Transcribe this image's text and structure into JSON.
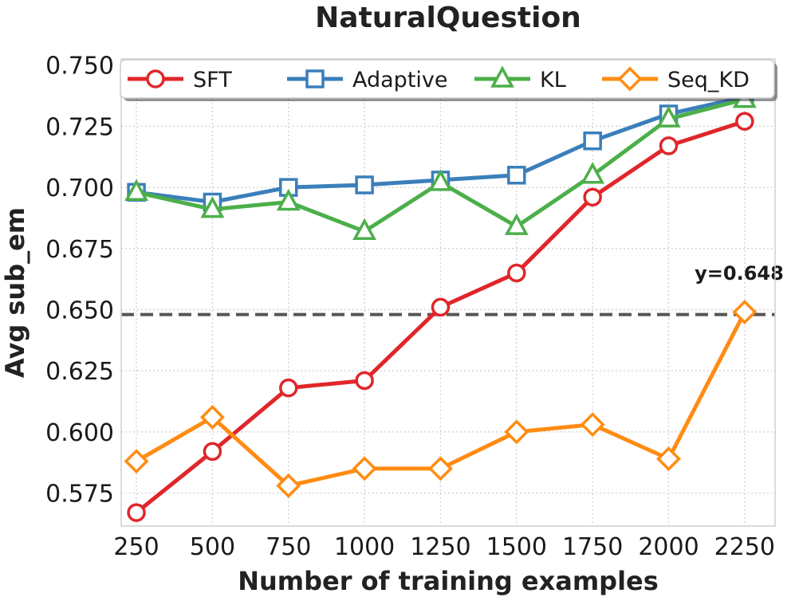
{
  "chart_data": {
    "type": "line",
    "title": "NaturalQuestion",
    "xlabel": "Number of training examples",
    "ylabel": "Avg sub_em",
    "x": [
      250,
      500,
      750,
      1000,
      1250,
      1500,
      1750,
      2000,
      2250
    ],
    "x_tick_labels": [
      "250",
      "500",
      "750",
      "1000",
      "1250",
      "1500",
      "1750",
      "2000",
      "2250"
    ],
    "y_ticks": [
      0.575,
      0.6,
      0.625,
      0.65,
      0.675,
      0.7,
      0.725,
      0.75
    ],
    "y_tick_labels": [
      "0.575",
      "0.600",
      "0.625",
      "0.650",
      "0.675",
      "0.700",
      "0.725",
      "0.750"
    ],
    "xlim": [
      200,
      2350
    ],
    "ylim": [
      0.5615,
      0.7525
    ],
    "grid": true,
    "legend_position": "top",
    "reference_line": {
      "y": 0.648,
      "label": "y=0.648",
      "color": "#555555"
    },
    "series": [
      {
        "name": "SFT",
        "color": "#e0262a",
        "marker": "circle",
        "values": [
          0.567,
          0.592,
          0.618,
          0.621,
          0.651,
          0.665,
          0.696,
          0.717,
          0.727
        ]
      },
      {
        "name": "Adaptive",
        "color": "#3a7fbb",
        "marker": "square",
        "values": [
          0.698,
          0.694,
          0.7,
          0.701,
          0.703,
          0.705,
          0.719,
          0.73,
          0.737
        ]
      },
      {
        "name": "KL",
        "color": "#4caf4a",
        "marker": "triangle",
        "values": [
          0.698,
          0.691,
          0.694,
          0.682,
          0.702,
          0.684,
          0.705,
          0.728,
          0.736
        ]
      },
      {
        "name": "Seq_KD",
        "color": "#ff8c12",
        "marker": "diamond",
        "values": [
          0.588,
          0.606,
          0.578,
          0.585,
          0.585,
          0.6,
          0.603,
          0.589,
          0.649
        ]
      }
    ]
  }
}
